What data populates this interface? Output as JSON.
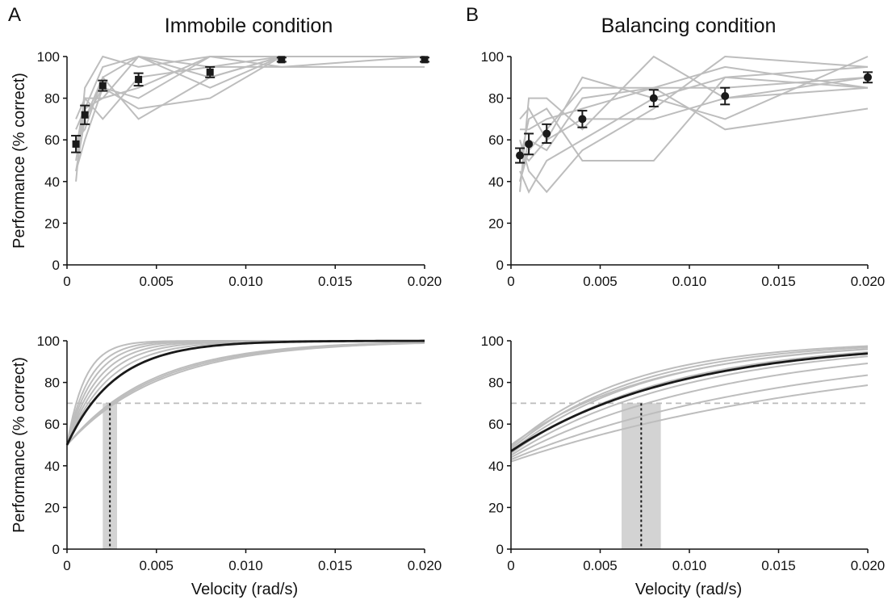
{
  "panel_letters": [
    "A",
    "B"
  ],
  "column_titles": [
    "Immobile condition",
    "Balancing condition"
  ],
  "colors": {
    "subject_line": "#bdbdbd",
    "mean": "#1a1a1a",
    "shade": "#d3d3d3",
    "threshold": "#bbbbbb"
  },
  "chart_data": [
    {
      "type": "line",
      "panel": "A",
      "row": "top",
      "title": "Immobile condition",
      "xlabel": "",
      "ylabel": "Performance (% correct)",
      "xlim": [
        0,
        0.02
      ],
      "ylim": [
        0,
        100
      ],
      "xticks": [
        "0",
        "0.005",
        "0.010",
        "0.015",
        "0.020"
      ],
      "yticks": [
        "0",
        "20",
        "40",
        "60",
        "80",
        "100"
      ],
      "x": [
        0.0005,
        0.001,
        0.002,
        0.004,
        0.008,
        0.012,
        0.02
      ],
      "subjects": [
        [
          40,
          85,
          100,
          95,
          100,
          100,
          100
        ],
        [
          45,
          70,
          85,
          75,
          80,
          100,
          100
        ],
        [
          50,
          75,
          95,
          100,
          90,
          100,
          100
        ],
        [
          55,
          80,
          70,
          90,
          95,
          95,
          95
        ],
        [
          60,
          65,
          90,
          70,
          90,
          100,
          100
        ],
        [
          65,
          75,
          80,
          100,
          95,
          100,
          100
        ],
        [
          70,
          80,
          80,
          85,
          100,
          95,
          100
        ],
        [
          55,
          70,
          90,
          100,
          85,
          100,
          100
        ],
        [
          45,
          60,
          85,
          80,
          100,
          100,
          100
        ]
      ],
      "mean_marker": "square",
      "mean": [
        58,
        72,
        86,
        89,
        92.5,
        98.5,
        98.5
      ],
      "sem": [
        4,
        4.5,
        2.5,
        3,
        2.5,
        1,
        1
      ]
    },
    {
      "type": "line",
      "panel": "B",
      "row": "top",
      "title": "Balancing condition",
      "xlabel": "",
      "ylabel": "",
      "xlim": [
        0,
        0.02
      ],
      "ylim": [
        0,
        100
      ],
      "xticks": [
        "0",
        "0.005",
        "0.010",
        "0.015",
        "0.020"
      ],
      "yticks": [
        "0",
        "20",
        "40",
        "60",
        "80",
        "100"
      ],
      "x": [
        0.0005,
        0.001,
        0.002,
        0.004,
        0.008,
        0.012,
        0.02
      ],
      "subjects": [
        [
          35,
          80,
          80,
          65,
          100,
          80,
          85
        ],
        [
          60,
          45,
          35,
          55,
          75,
          100,
          95
        ],
        [
          70,
          75,
          60,
          90,
          80,
          70,
          100
        ],
        [
          50,
          70,
          75,
          50,
          50,
          90,
          85
        ],
        [
          40,
          55,
          65,
          85,
          85,
          85,
          90
        ],
        [
          45,
          35,
          50,
          60,
          80,
          90,
          95
        ],
        [
          65,
          65,
          70,
          75,
          85,
          65,
          75
        ],
        [
          55,
          50,
          60,
          70,
          70,
          80,
          90
        ],
        [
          40,
          60,
          55,
          80,
          85,
          95,
          85
        ]
      ],
      "mean_marker": "circle",
      "mean": [
        52.5,
        58,
        63,
        70,
        80,
        81,
        90
      ],
      "sem": [
        3.5,
        5,
        4.5,
        4,
        4,
        4,
        2.5
      ]
    },
    {
      "type": "line",
      "panel": "A",
      "row": "bottom",
      "xlabel": "Velocity (rad/s)",
      "ylabel": "Performance (% correct)",
      "xlim": [
        0,
        0.02
      ],
      "ylim": [
        0,
        100
      ],
      "xticks": [
        "0",
        "0.005",
        "0.010",
        "0.015",
        "0.020"
      ],
      "yticks": [
        "0",
        "20",
        "40",
        "60",
        "80",
        "100"
      ],
      "curve_start": [
        50,
        50,
        50,
        50,
        50,
        50,
        50,
        50,
        50
      ],
      "curve_rate": [
        1000,
        800,
        680,
        580,
        500,
        430,
        210,
        200,
        190
      ],
      "mean_start": 50,
      "mean_rate": 370,
      "threshold_level": 70,
      "threshold_x": 0.0024,
      "threshold_band": [
        0.002,
        0.0028
      ]
    },
    {
      "type": "line",
      "panel": "B",
      "row": "bottom",
      "xlabel": "Velocity (rad/s)",
      "ylabel": "",
      "xlim": [
        0,
        0.02
      ],
      "ylim": [
        0,
        100
      ],
      "xticks": [
        "0",
        "0.005",
        "0.010",
        "0.015",
        "0.020"
      ],
      "yticks": [
        "0",
        "20",
        "40",
        "60",
        "80",
        "100"
      ],
      "curve_start": [
        49,
        48,
        47,
        50,
        46,
        45,
        44,
        43,
        42
      ],
      "curve_rate": [
        150,
        140,
        130,
        125,
        115,
        100,
        82,
        62,
        50
      ],
      "mean_start": 47,
      "mean_rate": 108,
      "threshold_level": 70,
      "threshold_x": 0.0073,
      "threshold_band": [
        0.0062,
        0.0084
      ]
    }
  ]
}
